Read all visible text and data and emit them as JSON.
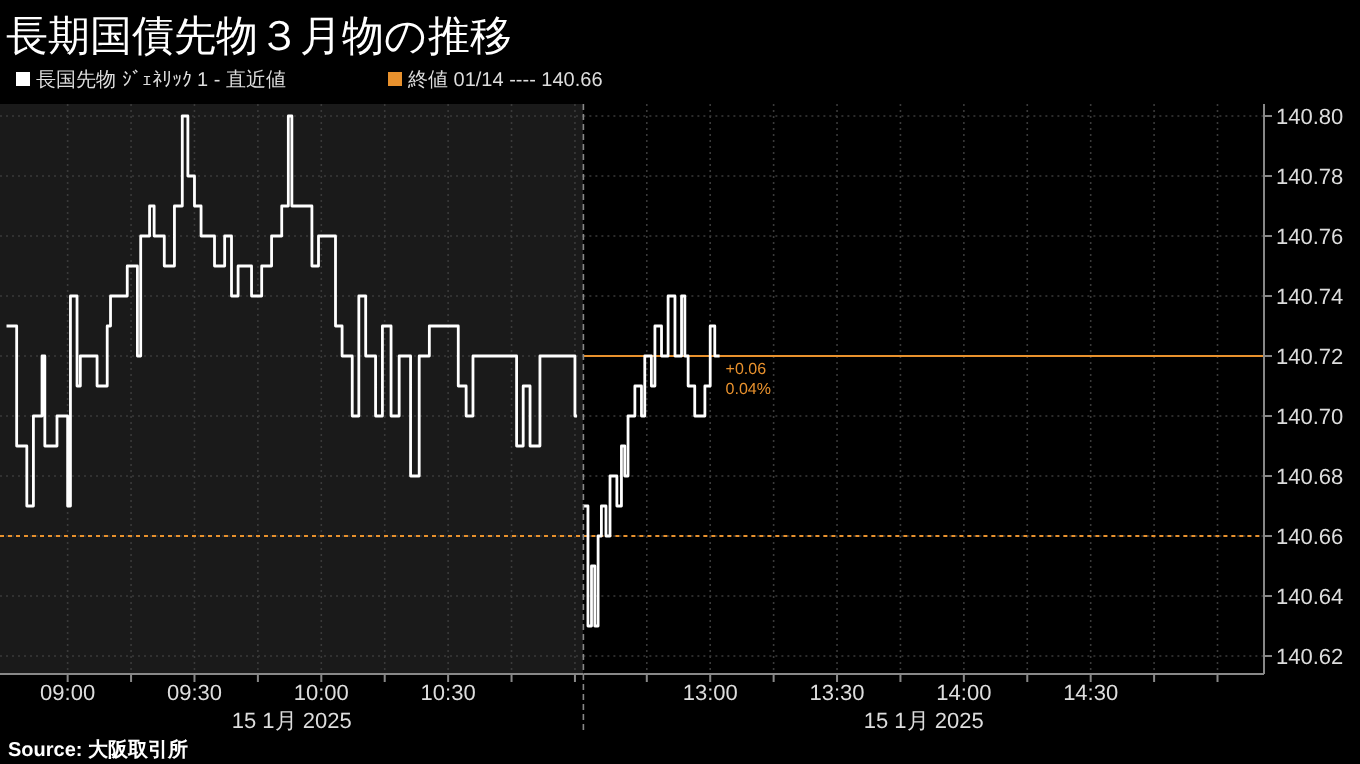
{
  "chart_data": [
    {
      "type": "step",
      "title": "長期国債先物３月物の推移",
      "legend": "top left",
      "grid": true,
      "tick_labels": "x",
      "xlabel": "15 1月 2025",
      "xlim": [
        8.7333,
        11.0333
      ],
      "ylim": [
        140.614,
        140.804
      ],
      "xticks": [
        {
          "value": 9,
          "label": "09:00"
        },
        {
          "value": 9.25,
          "label": null
        },
        {
          "value": 9.5,
          "label": "09:30"
        },
        {
          "value": 9.75,
          "label": null
        },
        {
          "value": 10,
          "label": "10:00"
        },
        {
          "value": 10.25,
          "label": null
        },
        {
          "value": 10.5,
          "label": "10:30"
        },
        {
          "value": 10.75,
          "label": null
        },
        {
          "value": 11,
          "label": null
        }
      ],
      "series": [
        {
          "name": "長国先物 ｼﾞｪﾈﾘｯｸ 1 - 直近値",
          "color": "#ffffff",
          "x": [
            8.759,
            8.799,
            8.839,
            8.865,
            8.899,
            8.91,
            8.958,
            9.0,
            9.011,
            9.037,
            9.05,
            9.116,
            9.156,
            9.169,
            9.235,
            9.275,
            9.288,
            9.323,
            9.341,
            9.381,
            9.421,
            9.452,
            9.474,
            9.5,
            9.526,
            9.579,
            9.619,
            9.646,
            9.672,
            9.725,
            9.765,
            9.804,
            9.844,
            9.87,
            9.884,
            9.963,
            9.989,
            10.056,
            10.082,
            10.122,
            10.148,
            10.175,
            10.214,
            10.241,
            10.275,
            10.307,
            10.352,
            10.386,
            10.426,
            10.54,
            10.571,
            10.598,
            10.77,
            10.796,
            10.823,
            10.862,
            11.0,
            11.008
          ],
          "values": [
            140.73,
            140.69,
            140.67,
            140.7,
            140.72,
            140.69,
            140.7,
            140.67,
            140.74,
            140.71,
            140.72,
            140.71,
            140.73,
            140.74,
            140.75,
            140.72,
            140.76,
            140.77,
            140.76,
            140.75,
            140.77,
            140.8,
            140.78,
            140.77,
            140.76,
            140.75,
            140.76,
            140.74,
            140.75,
            140.74,
            140.75,
            140.76,
            140.77,
            140.8,
            140.77,
            140.75,
            140.76,
            140.73,
            140.72,
            140.7,
            140.74,
            140.72,
            140.7,
            140.73,
            140.7,
            140.72,
            140.68,
            140.72,
            140.73,
            140.71,
            140.7,
            140.72,
            140.69,
            140.71,
            140.69,
            140.72,
            140.7,
            140.7
          ]
        }
      ],
      "yticks": [
        140.62,
        140.64,
        140.66,
        140.68,
        140.7,
        140.72,
        140.74,
        140.76,
        140.78,
        140.8
      ],
      "ref_lines": [
        {
          "axis": "y",
          "value": 140.66,
          "label": "終値 01/14 ---- 140.66",
          "color": "#e8912d",
          "line_style": "dotted"
        }
      ],
      "annotations": [
        "Source: 大阪取引所"
      ]
    },
    {
      "type": "step",
      "grid": true,
      "xlabel": "15 1月 2025",
      "xlim": [
        12.5,
        15.1833
      ],
      "ylim": [
        140.614,
        140.804
      ],
      "xticks": [
        {
          "value": 12.75,
          "label": null
        },
        {
          "value": 13,
          "label": "13:00"
        },
        {
          "value": 13.25,
          "label": null
        },
        {
          "value": 13.5,
          "label": "13:30"
        },
        {
          "value": 13.75,
          "label": null
        },
        {
          "value": 14,
          "label": "14:00"
        },
        {
          "value": 14.25,
          "label": null
        },
        {
          "value": 14.5,
          "label": "14:30"
        },
        {
          "value": 14.75,
          "label": null
        },
        {
          "value": 15,
          "label": null
        }
      ],
      "yticks": [
        140.62,
        140.64,
        140.66,
        140.68,
        {
          "value": 140.7,
          "label": "140.70"
        },
        140.72,
        140.74,
        140.76,
        140.78,
        {
          "value": 140.8,
          "label": "140.80"
        }
      ],
      "series": [
        {
          "color": "#ffffff",
          "x": [
            12.5,
            12.518,
            12.532,
            12.545,
            12.558,
            12.571,
            12.589,
            12.605,
            12.632,
            12.65,
            12.663,
            12.676,
            12.703,
            12.729,
            12.742,
            12.768,
            12.782,
            12.808,
            12.834,
            12.861,
            12.887,
            12.9,
            12.913,
            12.939,
            12.979,
            13.0,
            13.018,
            13.037
          ],
          "values": [
            140.67,
            140.63,
            140.65,
            140.63,
            140.66,
            140.67,
            140.66,
            140.68,
            140.67,
            140.69,
            140.68,
            140.7,
            140.71,
            140.7,
            140.72,
            140.71,
            140.73,
            140.72,
            140.74,
            140.72,
            140.74,
            140.72,
            140.71,
            140.7,
            140.71,
            140.73,
            140.72,
            140.72
          ]
        }
      ],
      "ref_lines": [
        {
          "axis": "y",
          "value": 140.66,
          "color": "#e8912d",
          "line_style": "dotted"
        },
        {
          "axis": "y",
          "value": 140.72,
          "color": "#e8912d",
          "line_style": "solid"
        }
      ],
      "annotations": [
        {
          "text": "+0.06",
          "x": 13.037,
          "y": 140.72
        },
        {
          "text": "0.04%",
          "x": 13.037,
          "y": 140.72
        }
      ]
    }
  ]
}
